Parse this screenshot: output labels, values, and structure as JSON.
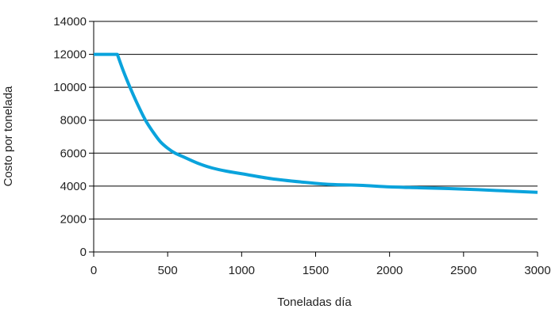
{
  "chart_data": {
    "type": "line",
    "title": "",
    "xlabel": "Toneladas día",
    "ylabel": "Costo por tonelada",
    "xlim": [
      0,
      3000
    ],
    "ylim": [
      0,
      14000
    ],
    "x_ticks": [
      0,
      500,
      1000,
      1500,
      2000,
      2500,
      3000
    ],
    "y_ticks": [
      0,
      2000,
      4000,
      6000,
      8000,
      10000,
      12000,
      14000
    ],
    "x_tick_labels": [
      "0",
      "500",
      "1000",
      "1500",
      "2000",
      "2500",
      "3000"
    ],
    "y_tick_labels": [
      "0",
      "2000",
      "4000",
      "6000",
      "8000",
      "10000",
      "12000",
      "14000"
    ],
    "grid": "horizontal",
    "legend": "none",
    "series": [
      {
        "color": "#0AA3DC",
        "x": [
          0,
          160,
          200,
          250,
          300,
          350,
          400,
          450,
          500,
          550,
          600,
          700,
          800,
          900,
          1000,
          1200,
          1400,
          1600,
          1800,
          2000,
          2200,
          2400,
          2600,
          2800,
          3000
        ],
        "y": [
          12000,
          12000,
          11000,
          9900,
          8900,
          8000,
          7300,
          6700,
          6300,
          6000,
          5800,
          5400,
          5100,
          4900,
          4750,
          4450,
          4250,
          4100,
          4050,
          3950,
          3900,
          3850,
          3780,
          3700,
          3620
        ]
      }
    ]
  },
  "colors": {
    "line": "#0AA3DC",
    "grid": "#000000",
    "axis": "#000000"
  }
}
